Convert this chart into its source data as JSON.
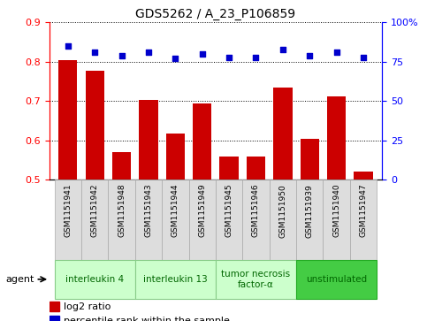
{
  "title": "GDS5262 / A_23_P106859",
  "samples": [
    "GSM1151941",
    "GSM1151942",
    "GSM1151948",
    "GSM1151943",
    "GSM1151944",
    "GSM1151949",
    "GSM1151945",
    "GSM1151946",
    "GSM1151950",
    "GSM1151939",
    "GSM1151940",
    "GSM1151947"
  ],
  "log2_ratio": [
    0.805,
    0.778,
    0.57,
    0.703,
    0.617,
    0.693,
    0.558,
    0.558,
    0.735,
    0.603,
    0.713,
    0.52
  ],
  "percentile_rank": [
    85,
    81,
    79,
    81,
    77,
    80,
    78,
    78,
    83,
    79,
    81,
    78
  ],
  "bar_color": "#cc0000",
  "dot_color": "#0000cc",
  "groups": [
    {
      "label": "interleukin 4",
      "start": 0,
      "end": 3,
      "color": "#ccffcc",
      "border": "#88cc88"
    },
    {
      "label": "interleukin 13",
      "start": 3,
      "end": 6,
      "color": "#ccffcc",
      "border": "#88cc88"
    },
    {
      "label": "tumor necrosis\nfactor-α",
      "start": 6,
      "end": 9,
      "color": "#ccffcc",
      "border": "#88cc88"
    },
    {
      "label": "unstimulated",
      "start": 9,
      "end": 12,
      "color": "#44cc44",
      "border": "#22aa22"
    }
  ],
  "ylim_left": [
    0.5,
    0.9
  ],
  "ylim_right": [
    0,
    100
  ],
  "yticks_left": [
    0.5,
    0.6,
    0.7,
    0.8,
    0.9
  ],
  "yticks_right": [
    0,
    25,
    50,
    75,
    100
  ],
  "ylabel_right_labels": [
    "0",
    "25",
    "50",
    "75",
    "100%"
  ],
  "bar_width": 0.7,
  "agent_label": "agent",
  "legend_log2": "log2 ratio",
  "legend_pct": "percentile rank within the sample",
  "sample_box_color": "#dddddd",
  "sample_box_edge": "#aaaaaa"
}
